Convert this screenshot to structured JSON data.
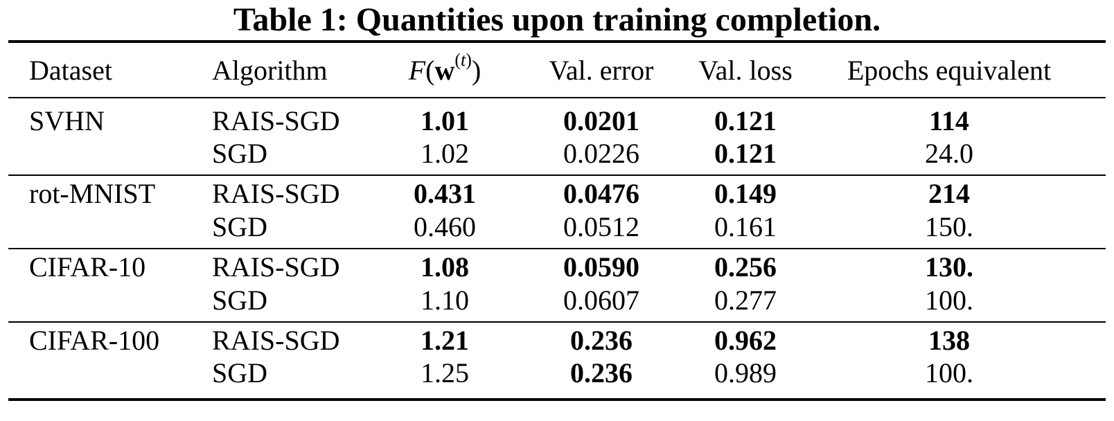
{
  "caption": "Table 1: Quantities upon training completion.",
  "headers": {
    "dataset": "Dataset",
    "algorithm": "Algorithm",
    "f_symbol": "F",
    "f_arg": "w",
    "f_sup": "t",
    "val_error": "Val. error",
    "val_loss": "Val. loss",
    "epochs": "Epochs equivalent"
  },
  "rows": [
    {
      "dataset": "SVHN",
      "algorithm": "RAIS-SGD",
      "f": "1.01",
      "f_bold": true,
      "err": "0.0201",
      "err_bold": true,
      "loss": "0.121",
      "loss_bold": true,
      "epochs": "114",
      "epochs_bold": true
    },
    {
      "dataset": "",
      "algorithm": "SGD",
      "f": "1.02",
      "f_bold": false,
      "err": "0.0226",
      "err_bold": false,
      "loss": "0.121",
      "loss_bold": true,
      "epochs": "24.0",
      "epochs_bold": false
    },
    {
      "dataset": "rot-MNIST",
      "algorithm": "RAIS-SGD",
      "f": "0.431",
      "f_bold": true,
      "err": "0.0476",
      "err_bold": true,
      "loss": "0.149",
      "loss_bold": true,
      "epochs": "214",
      "epochs_bold": true
    },
    {
      "dataset": "",
      "algorithm": "SGD",
      "f": "0.460",
      "f_bold": false,
      "err": "0.0512",
      "err_bold": false,
      "loss": "0.161",
      "loss_bold": false,
      "epochs": "150.",
      "epochs_bold": false
    },
    {
      "dataset": "CIFAR-10",
      "algorithm": "RAIS-SGD",
      "f": "1.08",
      "f_bold": true,
      "err": "0.0590",
      "err_bold": true,
      "loss": "0.256",
      "loss_bold": true,
      "epochs": "130.",
      "epochs_bold": true
    },
    {
      "dataset": "",
      "algorithm": "SGD",
      "f": "1.10",
      "f_bold": false,
      "err": "0.0607",
      "err_bold": false,
      "loss": "0.277",
      "loss_bold": false,
      "epochs": "100.",
      "epochs_bold": false
    },
    {
      "dataset": "CIFAR-100",
      "algorithm": "RAIS-SGD",
      "f": "1.21",
      "f_bold": true,
      "err": "0.236",
      "err_bold": true,
      "loss": "0.962",
      "loss_bold": true,
      "epochs": "138",
      "epochs_bold": true
    },
    {
      "dataset": "",
      "algorithm": "SGD",
      "f": "1.25",
      "f_bold": false,
      "err": "0.236",
      "err_bold": true,
      "loss": "0.989",
      "loss_bold": false,
      "epochs": "100.",
      "epochs_bold": false
    }
  ]
}
